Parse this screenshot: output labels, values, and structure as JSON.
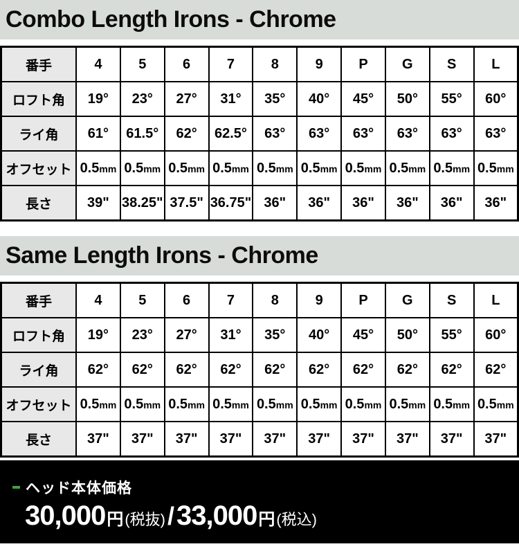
{
  "chart_data": [
    {
      "type": "table",
      "title": "Combo Length Irons - Chrome",
      "corner_label": "番手",
      "columns": [
        "4",
        "5",
        "6",
        "7",
        "8",
        "9",
        "P",
        "G",
        "S",
        "L"
      ],
      "rows": [
        {
          "label": "ロフト角",
          "values": [
            "19°",
            "23°",
            "27°",
            "31°",
            "35°",
            "40°",
            "45°",
            "50°",
            "55°",
            "60°"
          ]
        },
        {
          "label": "ライ角",
          "values": [
            "61°",
            "61.5°",
            "62°",
            "62.5°",
            "63°",
            "63°",
            "63°",
            "63°",
            "63°",
            "63°"
          ]
        },
        {
          "label": "オフセット",
          "values": [
            "0.5mm",
            "0.5mm",
            "0.5mm",
            "0.5mm",
            "0.5mm",
            "0.5mm",
            "0.5mm",
            "0.5mm",
            "0.5mm",
            "0.5mm"
          ]
        },
        {
          "label": "長さ",
          "values": [
            "39\"",
            "38.25\"",
            "37.5\"",
            "36.75\"",
            "36\"",
            "36\"",
            "36\"",
            "36\"",
            "36\"",
            "36\""
          ]
        }
      ]
    },
    {
      "type": "table",
      "title": "Same Length Irons - Chrome",
      "corner_label": "番手",
      "columns": [
        "4",
        "5",
        "6",
        "7",
        "8",
        "9",
        "P",
        "G",
        "S",
        "L"
      ],
      "rows": [
        {
          "label": "ロフト角",
          "values": [
            "19°",
            "23°",
            "27°",
            "31°",
            "35°",
            "40°",
            "45°",
            "50°",
            "55°",
            "60°"
          ]
        },
        {
          "label": "ライ角",
          "values": [
            "62°",
            "62°",
            "62°",
            "62°",
            "62°",
            "62°",
            "62°",
            "62°",
            "62°",
            "62°"
          ]
        },
        {
          "label": "オフセット",
          "values": [
            "0.5mm",
            "0.5mm",
            "0.5mm",
            "0.5mm",
            "0.5mm",
            "0.5mm",
            "0.5mm",
            "0.5mm",
            "0.5mm",
            "0.5mm"
          ]
        },
        {
          "label": "長さ",
          "values": [
            "37\"",
            "37\"",
            "37\"",
            "37\"",
            "37\"",
            "37\"",
            "37\"",
            "37\"",
            "37\"",
            "37\""
          ]
        }
      ]
    }
  ],
  "footer": {
    "label": "ヘッド本体価格",
    "price": {
      "amount_excl": "30,000",
      "unit_excl": "円",
      "tax_excl": "(税抜)",
      "separator": "/",
      "amount_incl": "33,000",
      "unit_incl": "円",
      "tax_incl": "(税込)"
    }
  },
  "colors": {
    "title_bar_bg": "#d8dcd8",
    "row_header_bg": "#e8e8e8",
    "footer_bg": "#000000",
    "accent_green": "#3fa23f",
    "border": "#000000"
  }
}
